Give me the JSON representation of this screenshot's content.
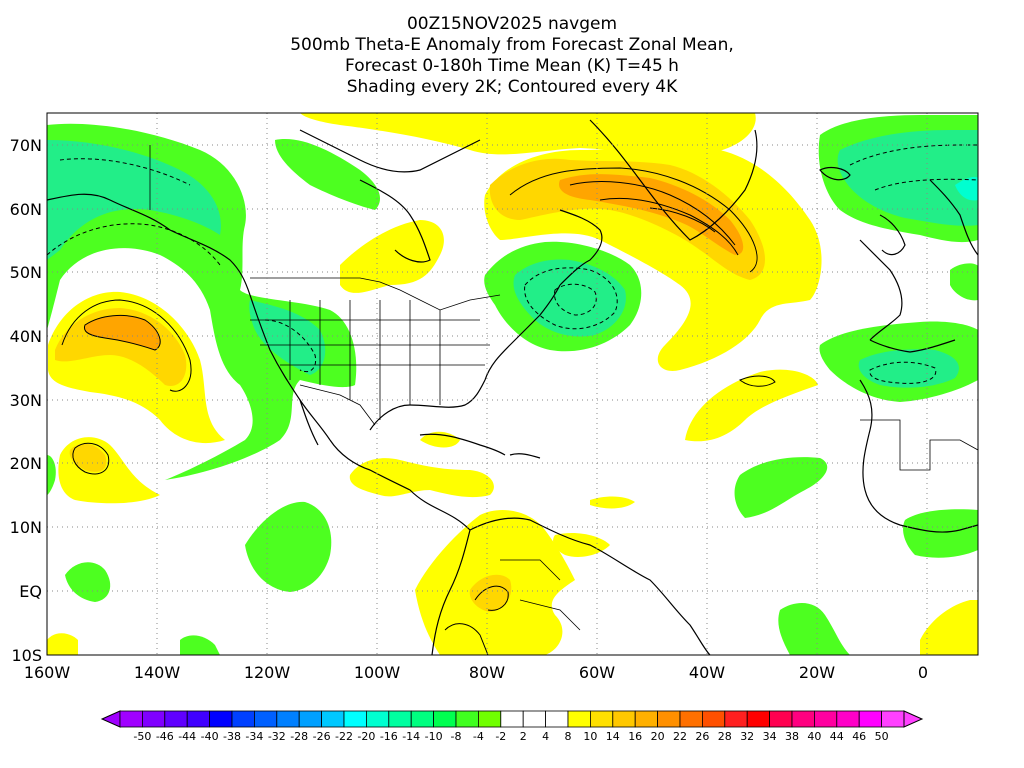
{
  "title": {
    "line1": "00Z15NOV2025 navgem",
    "line2": "500mb Theta-E Anomaly from Forecast Zonal Mean,",
    "line3": "Forecast 0-180h Time Mean (K) T=45 h",
    "line4": "Shading every 2K; Contoured every 4K"
  },
  "axes": {
    "lon_labels": [
      "160W",
      "140W",
      "120W",
      "100W",
      "80W",
      "60W",
      "40W",
      "20W",
      "0"
    ],
    "lat_labels": [
      "70N",
      "60N",
      "50N",
      "40N",
      "30N",
      "20N",
      "10N",
      "EQ",
      "10S"
    ]
  },
  "colorbar": {
    "labels": [
      "-50",
      "-46",
      "-44",
      "-40",
      "-38",
      "-34",
      "-32",
      "-28",
      "-26",
      "-22",
      "-20",
      "-16",
      "-14",
      "-10",
      "-8",
      "-4",
      "-2",
      "2",
      "4",
      "8",
      "10",
      "14",
      "16",
      "20",
      "22",
      "26",
      "28",
      "32",
      "34",
      "38",
      "40",
      "44",
      "46",
      "50"
    ],
    "colors": [
      "#a000ff",
      "#8000ff",
      "#6000ff",
      "#4000ff",
      "#0000ff",
      "#0040ff",
      "#0060ff",
      "#0080ff",
      "#00a0ff",
      "#00c8ff",
      "#00ffff",
      "#00ffd0",
      "#00ffa0",
      "#00ff80",
      "#00ff50",
      "#40ff20",
      "#70ff00",
      "#ffffff",
      "#ffffff",
      "#ffffff",
      "#ffff00",
      "#ffe000",
      "#ffc800",
      "#ffb000",
      "#ff9000",
      "#ff7000",
      "#ff5000",
      "#ff2020",
      "#ff0000",
      "#ff0050",
      "#ff0080",
      "#ff00a0",
      "#ff00c8",
      "#ff00ff",
      "#ff40ff"
    ]
  },
  "colors": {
    "yellow": "#ffff00",
    "gold": "#ffd700",
    "orange": "#ffa500",
    "green": "#4dff20",
    "teal": "#22ee88",
    "cyan": "#00ffd0"
  }
}
